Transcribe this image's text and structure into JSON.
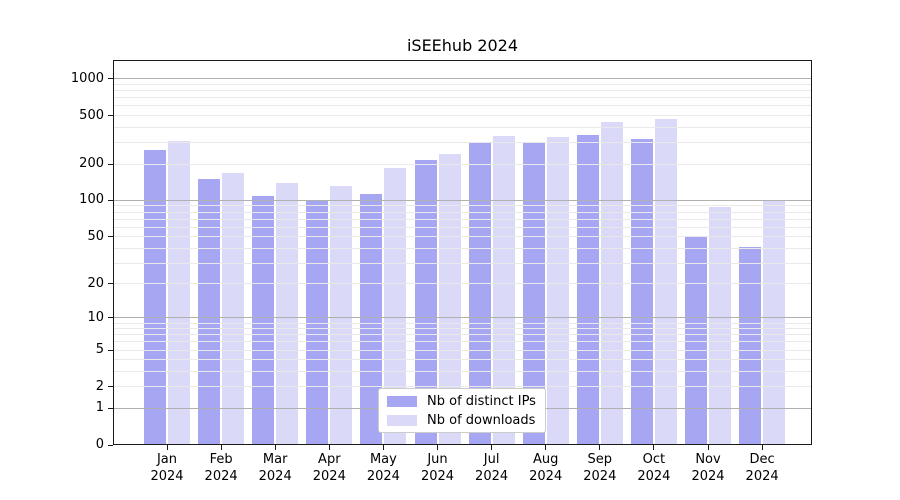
{
  "chart_data": {
    "type": "bar",
    "title": "iSEEhub 2024",
    "scale": "log1p",
    "grid": true,
    "legend_position": "lower center",
    "months": [
      "Jan",
      "Feb",
      "Mar",
      "Apr",
      "May",
      "Jun",
      "Jul",
      "Aug",
      "Sep",
      "Oct",
      "Nov",
      "Dec"
    ],
    "year": "2024",
    "yticks": [
      0,
      1,
      2,
      5,
      10,
      20,
      50,
      100,
      200,
      500,
      1000
    ],
    "yticklabels": [
      "0",
      "1",
      "2",
      "5",
      "10",
      "20",
      "50",
      "100",
      "200",
      "500",
      "1000"
    ],
    "ylim": [
      0,
      1430
    ],
    "series": [
      {
        "name": "Nb of distinct IPs",
        "color": "#a6a6f2",
        "values": [
          260,
          150,
          108,
          100,
          113,
          216,
          297,
          297,
          348,
          322,
          50,
          41
        ]
      },
      {
        "name": "Nb of downloads",
        "color": "#dadaf8",
        "values": [
          307,
          168,
          140,
          131,
          185,
          243,
          337,
          331,
          445,
          467,
          88,
          100
        ]
      }
    ]
  }
}
